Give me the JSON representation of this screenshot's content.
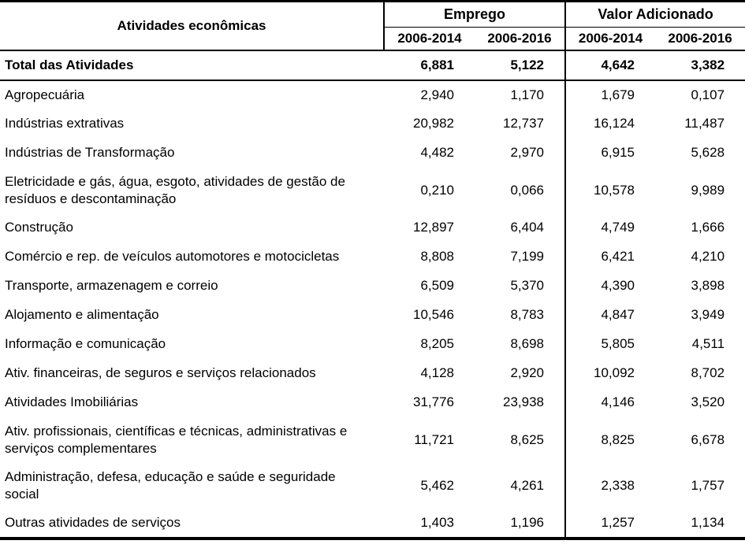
{
  "table": {
    "header": {
      "activities_label": "Atividades econômicas",
      "groups": [
        {
          "label": "Emprego",
          "periods": [
            "2006-2014",
            "2006-2016"
          ]
        },
        {
          "label": "Valor Adicionado",
          "periods": [
            "2006-2014",
            "2006-2016"
          ]
        }
      ]
    },
    "total_row": {
      "label": "Total das Atividades",
      "values": [
        "6,881",
        "5,122",
        "4,642",
        "3,382"
      ]
    },
    "rows": [
      {
        "label": "Agropecuária",
        "values": [
          "2,940",
          "1,170",
          "1,679",
          "0,107"
        ]
      },
      {
        "label": "Indústrias extrativas",
        "values": [
          "20,982",
          "12,737",
          "16,124",
          "11,487"
        ]
      },
      {
        "label": "Indústrias de Transformação",
        "values": [
          "4,482",
          "2,970",
          "6,915",
          "5,628"
        ]
      },
      {
        "label": "Eletricidade e gás, água, esgoto, atividades de gestão de resíduos e descontaminação",
        "values": [
          "0,210",
          "0,066",
          "10,578",
          "9,989"
        ]
      },
      {
        "label": "Construção",
        "values": [
          "12,897",
          "6,404",
          "4,749",
          "1,666"
        ]
      },
      {
        "label": "Comércio e rep. de veículos automotores e motocicletas",
        "values": [
          "8,808",
          "7,199",
          "6,421",
          "4,210"
        ]
      },
      {
        "label": "Transporte, armazenagem e correio",
        "values": [
          "6,509",
          "5,370",
          "4,390",
          "3,898"
        ]
      },
      {
        "label": "Alojamento e alimentação",
        "values": [
          "10,546",
          "8,783",
          "4,847",
          "3,949"
        ]
      },
      {
        "label": "Informação e comunicação",
        "values": [
          "8,205",
          "8,698",
          "5,805",
          "4,511"
        ]
      },
      {
        "label": "Ativ. financeiras, de seguros e serviços relacionados",
        "values": [
          "4,128",
          "2,920",
          "10,092",
          "8,702"
        ]
      },
      {
        "label": "Atividades Imobiliárias",
        "values": [
          "31,776",
          "23,938",
          "4,146",
          "3,520"
        ]
      },
      {
        "label": "Ativ. profissionais, científicas e técnicas, administrativas e serviços complementares",
        "values": [
          "11,721",
          "8,625",
          "8,825",
          "6,678"
        ]
      },
      {
        "label": "Administração, defesa, educação e saúde e seguridade social",
        "values": [
          "5,462",
          "4,261",
          "2,338",
          "1,757"
        ]
      },
      {
        "label": "Outras atividades de serviços",
        "values": [
          "1,403",
          "1,196",
          "1,257",
          "1,134"
        ]
      }
    ]
  },
  "chart_data": {
    "type": "table",
    "title": "",
    "decimal_separator": ",",
    "column_groups": [
      "Emprego",
      "Valor Adicionado"
    ],
    "columns": [
      "Atividades econômicas",
      "Emprego 2006-2014",
      "Emprego 2006-2016",
      "Valor Adicionado 2006-2014",
      "Valor Adicionado 2006-2016"
    ],
    "rows": [
      [
        "Total das Atividades",
        6.881,
        5.122,
        4.642,
        3.382
      ],
      [
        "Agropecuária",
        2.94,
        1.17,
        1.679,
        0.107
      ],
      [
        "Indústrias extrativas",
        20.982,
        12.737,
        16.124,
        11.487
      ],
      [
        "Indústrias de Transformação",
        4.482,
        2.97,
        6.915,
        5.628
      ],
      [
        "Eletricidade e gás, água, esgoto, atividades de gestão de resíduos e descontaminação",
        0.21,
        0.066,
        10.578,
        9.989
      ],
      [
        "Construção",
        12.897,
        6.404,
        4.749,
        1.666
      ],
      [
        "Comércio e rep. de veículos automotores e motocicletas",
        8.808,
        7.199,
        6.421,
        4.21
      ],
      [
        "Transporte, armazenagem e correio",
        6.509,
        5.37,
        4.39,
        3.898
      ],
      [
        "Alojamento e alimentação",
        10.546,
        8.783,
        4.847,
        3.949
      ],
      [
        "Informação e comunicação",
        8.205,
        8.698,
        5.805,
        4.511
      ],
      [
        "Ativ. financeiras, de seguros e serviços relacionados",
        4.128,
        2.92,
        10.092,
        8.702
      ],
      [
        "Atividades Imobiliárias",
        31.776,
        23.938,
        4.146,
        3.52
      ],
      [
        "Ativ. profissionais, científicas e técnicas, administrativas e serviços complementares",
        11.721,
        8.625,
        8.825,
        6.678
      ],
      [
        "Administração, defesa, educação e saúde e seguridade social",
        5.462,
        4.261,
        2.338,
        1.757
      ],
      [
        "Outras atividades de serviços",
        1.403,
        1.196,
        1.257,
        1.134
      ]
    ]
  }
}
